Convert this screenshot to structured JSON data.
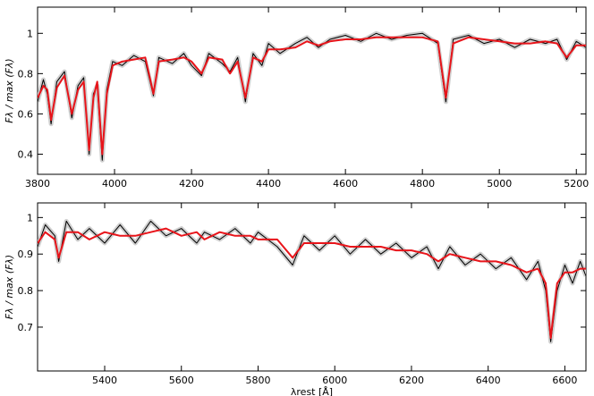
{
  "chart_data": [
    {
      "type": "line",
      "y_label": "Fλ / max (Fλ)",
      "x": [
        3800,
        3815,
        3825,
        3835,
        3850,
        3870,
        3889,
        3905,
        3920,
        3934,
        3945,
        3955,
        3968,
        3980,
        3995,
        4020,
        4050,
        4080,
        4101,
        4115,
        4150,
        4180,
        4200,
        4226,
        4245,
        4280,
        4300,
        4320,
        4340,
        4360,
        4383,
        4400,
        4430,
        4470,
        4500,
        4530,
        4560,
        4600,
        4640,
        4680,
        4720,
        4760,
        4800,
        4840,
        4861,
        4880,
        4920,
        4960,
        5000,
        5040,
        5080,
        5120,
        5150,
        5175,
        5200,
        5225
      ],
      "series": [
        {
          "color": "#000000",
          "values": [
            0.66,
            0.77,
            0.7,
            0.55,
            0.76,
            0.81,
            0.58,
            0.74,
            0.78,
            0.4,
            0.7,
            0.74,
            0.37,
            0.72,
            0.86,
            0.84,
            0.89,
            0.86,
            0.69,
            0.88,
            0.85,
            0.9,
            0.84,
            0.79,
            0.9,
            0.85,
            0.81,
            0.88,
            0.66,
            0.9,
            0.84,
            0.95,
            0.9,
            0.95,
            0.98,
            0.93,
            0.97,
            0.99,
            0.96,
            1.0,
            0.97,
            0.99,
            1.0,
            0.95,
            0.66,
            0.97,
            0.99,
            0.95,
            0.97,
            0.93,
            0.97,
            0.95,
            0.97,
            0.87,
            0.96,
            0.93
          ]
        },
        {
          "color": "#e8141a",
          "values": [
            0.68,
            0.74,
            0.72,
            0.57,
            0.73,
            0.79,
            0.6,
            0.72,
            0.76,
            0.42,
            0.68,
            0.76,
            0.4,
            0.7,
            0.84,
            0.86,
            0.87,
            0.88,
            0.7,
            0.86,
            0.87,
            0.88,
            0.86,
            0.8,
            0.88,
            0.87,
            0.8,
            0.86,
            0.68,
            0.88,
            0.86,
            0.92,
            0.92,
            0.93,
            0.96,
            0.94,
            0.96,
            0.97,
            0.97,
            0.98,
            0.98,
            0.98,
            0.98,
            0.96,
            0.68,
            0.95,
            0.98,
            0.97,
            0.96,
            0.95,
            0.95,
            0.96,
            0.95,
            0.88,
            0.94,
            0.94
          ]
        }
      ],
      "xlim": [
        3800,
        5225
      ],
      "xticks": [
        3800,
        4000,
        4200,
        4400,
        4600,
        4800,
        5000,
        5200
      ],
      "ylim": [
        0.3,
        1.13
      ],
      "yticks": [
        0.4,
        0.6,
        0.8,
        1
      ]
    },
    {
      "type": "line",
      "y_label": "Fλ / max (Fλ)",
      "x_label": "λrest [Å]",
      "x": [
        5225,
        5245,
        5270,
        5280,
        5300,
        5330,
        5360,
        5400,
        5440,
        5480,
        5520,
        5560,
        5600,
        5640,
        5660,
        5700,
        5740,
        5780,
        5800,
        5850,
        5890,
        5920,
        5960,
        6000,
        6040,
        6080,
        6120,
        6160,
        6200,
        6240,
        6270,
        6300,
        6340,
        6380,
        6420,
        6460,
        6500,
        6530,
        6550,
        6563,
        6580,
        6600,
        6620,
        6640,
        6655
      ],
      "series": [
        {
          "color": "#000000",
          "values": [
            0.92,
            0.98,
            0.95,
            0.88,
            0.99,
            0.94,
            0.97,
            0.93,
            0.98,
            0.93,
            0.99,
            0.95,
            0.97,
            0.93,
            0.96,
            0.94,
            0.97,
            0.93,
            0.96,
            0.92,
            0.87,
            0.95,
            0.91,
            0.95,
            0.9,
            0.94,
            0.9,
            0.93,
            0.89,
            0.92,
            0.86,
            0.92,
            0.87,
            0.9,
            0.86,
            0.89,
            0.83,
            0.88,
            0.8,
            0.66,
            0.8,
            0.87,
            0.82,
            0.88,
            0.84
          ]
        },
        {
          "color": "#e8141a",
          "values": [
            0.93,
            0.96,
            0.94,
            0.89,
            0.96,
            0.96,
            0.94,
            0.96,
            0.95,
            0.95,
            0.96,
            0.97,
            0.95,
            0.96,
            0.94,
            0.96,
            0.95,
            0.95,
            0.94,
            0.94,
            0.89,
            0.93,
            0.93,
            0.93,
            0.92,
            0.92,
            0.92,
            0.91,
            0.91,
            0.9,
            0.88,
            0.9,
            0.89,
            0.88,
            0.88,
            0.87,
            0.85,
            0.86,
            0.82,
            0.67,
            0.82,
            0.85,
            0.85,
            0.86,
            0.86
          ]
        }
      ],
      "xlim": [
        5225,
        6655
      ],
      "xticks": [
        5400,
        5600,
        5800,
        6000,
        6200,
        6400,
        6600
      ],
      "ylim": [
        0.58,
        1.04
      ],
      "yticks": [
        0.7,
        0.8,
        0.9,
        1
      ]
    }
  ]
}
